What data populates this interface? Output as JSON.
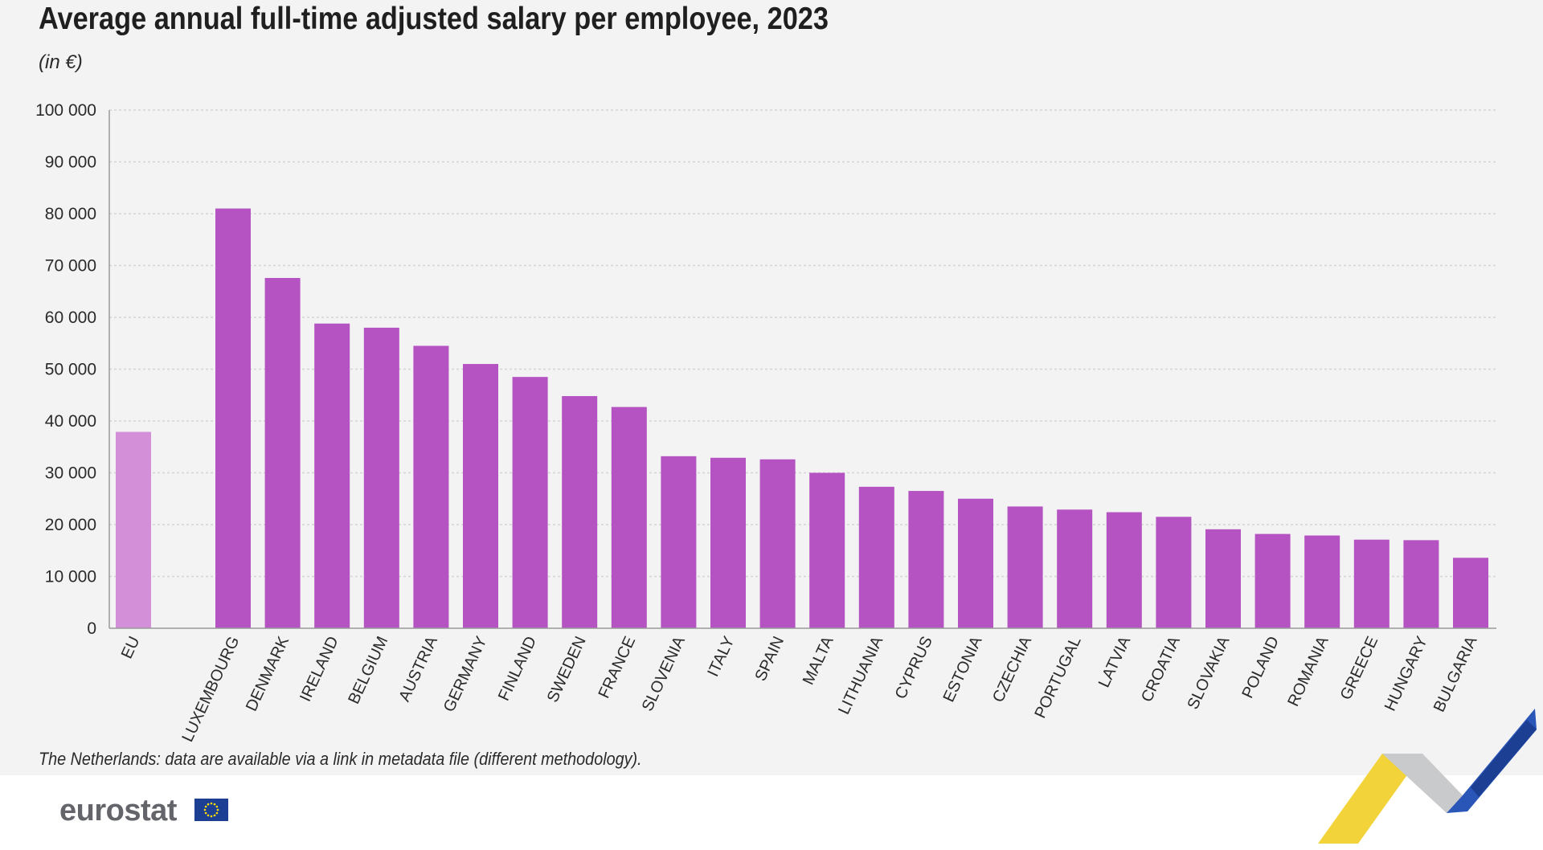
{
  "title": "Average annual full-time adjusted salary per employee, 2023",
  "subtitle": "(in €)",
  "footnote": "The Netherlands: data are available via a link in metadata file (different methodology).",
  "logo": {
    "text": "eurostat",
    "flag_icon": "eu-flag-icon"
  },
  "colors": {
    "eu_bar": "#d38fd8",
    "country_bar": "#b453c1",
    "gridline": "#d4d4d4",
    "axis": "#9a9a9a",
    "text": "#2a2a2a"
  },
  "chart_data": {
    "type": "bar",
    "title": "Average annual full-time adjusted salary per employee, 2023",
    "subtitle": "(in €)",
    "xlabel": "",
    "ylabel": "",
    "ylim": [
      0,
      100000
    ],
    "yticks": [
      0,
      10000,
      20000,
      30000,
      40000,
      50000,
      60000,
      70000,
      80000,
      90000,
      100000
    ],
    "ytick_labels": [
      "0",
      "10 000",
      "20 000",
      "30 000",
      "40 000",
      "50 000",
      "60 000",
      "70 000",
      "80 000",
      "90 000",
      "100 000"
    ],
    "grid": true,
    "categories": [
      "EU",
      "LUXEMBOURG",
      "DENMARK",
      "IRELAND",
      "BELGIUM",
      "AUSTRIA",
      "GERMANY",
      "FINLAND",
      "SWEDEN",
      "FRANCE",
      "SLOVENIA",
      "ITALY",
      "SPAIN",
      "MALTA",
      "LITHUANIA",
      "CYPRUS",
      "ESTONIA",
      "CZECHIA",
      "PORTUGAL",
      "LATVIA",
      "CROATIA",
      "SLOVAKIA",
      "POLAND",
      "ROMANIA",
      "GREECE",
      "HUNGARY",
      "BULGARIA"
    ],
    "values": [
      37900,
      81000,
      67600,
      58800,
      58000,
      54500,
      51000,
      48500,
      44800,
      42700,
      33200,
      32900,
      32600,
      30000,
      27300,
      26500,
      25000,
      23500,
      22900,
      22400,
      21500,
      19100,
      18200,
      17900,
      17100,
      17000,
      13600
    ]
  }
}
